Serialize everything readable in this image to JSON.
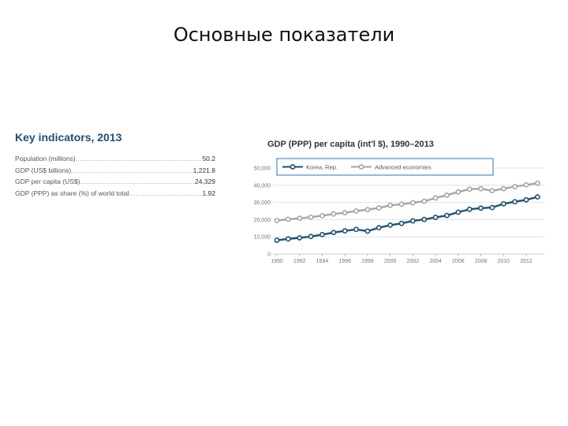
{
  "slide": {
    "title": "Основные показатели"
  },
  "key_indicators": {
    "title": "Key indicators, 2013",
    "rows": [
      {
        "label": "Population (millions)",
        "value": "50.2"
      },
      {
        "label": "GDP (US$ billions)",
        "value": "1,221.8"
      },
      {
        "label": "GDP per capita (US$)",
        "value": "24,329"
      },
      {
        "label": "GDP (PPP) as share (%) of world total",
        "value": "1.92"
      }
    ]
  },
  "colors": {
    "korea": "#1a5276",
    "advanced": "#a6a6a6",
    "legend_border": "#2e75b6",
    "title_blue": "#1f4e79"
  },
  "chart_data": {
    "type": "line",
    "title": "GDP (PPP) per capita (int'l $), 1990–2013",
    "xlabel": "",
    "ylabel": "",
    "x": [
      1990,
      1991,
      1992,
      1993,
      1994,
      1995,
      1996,
      1997,
      1998,
      1999,
      2000,
      2001,
      2002,
      2003,
      2004,
      2005,
      2006,
      2007,
      2008,
      2009,
      2010,
      2011,
      2012,
      2013
    ],
    "x_ticks": [
      "1990",
      "1992",
      "1994",
      "1996",
      "1998",
      "2000",
      "2002",
      "2004",
      "2006",
      "2008",
      "2010",
      "2012"
    ],
    "y_ticks": [
      "0",
      "10,000",
      "20,000",
      "30,000",
      "40,000",
      "50,000"
    ],
    "ylim": [
      0,
      50000
    ],
    "grid": true,
    "legend_position": "top",
    "series": [
      {
        "name": "Korea, Rep.",
        "color": "#1a5276",
        "values": [
          8000,
          8800,
          9400,
          10200,
          11300,
          12500,
          13500,
          14300,
          13300,
          15300,
          16800,
          17800,
          19300,
          20100,
          21300,
          22400,
          24300,
          26000,
          26700,
          27000,
          29200,
          30400,
          31500,
          33200
        ]
      },
      {
        "name": "Advanced economies",
        "color": "#a6a6a6",
        "values": [
          19500,
          20200,
          20800,
          21400,
          22300,
          23300,
          24000,
          25000,
          25800,
          26800,
          28300,
          29000,
          29800,
          30700,
          32600,
          34200,
          36100,
          37700,
          38000,
          36800,
          38000,
          39200,
          40200,
          41200
        ]
      }
    ]
  }
}
